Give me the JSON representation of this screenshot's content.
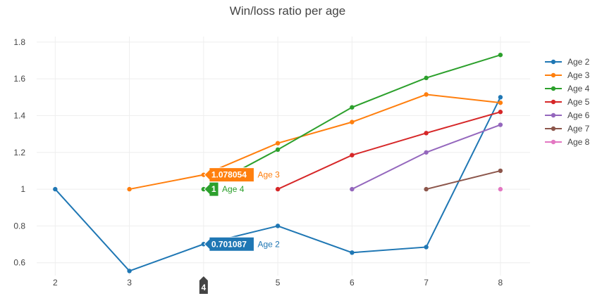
{
  "chart_data": {
    "type": "line",
    "title": "Win/loss ratio per age",
    "x_ticks": [
      "2",
      "3",
      "4",
      "5",
      "6",
      "7",
      "8"
    ],
    "y_ticks": [
      "0.6",
      "0.8",
      "1",
      "1.2",
      "1.4",
      "1.6",
      "1.8"
    ],
    "xlim": [
      1.75,
      8.4
    ],
    "ylim": [
      0.53,
      1.83
    ],
    "grid": true,
    "legend_position": "right",
    "series": [
      {
        "name": "Age 2",
        "color": "#1f77b4",
        "points": [
          [
            2,
            1.0
          ],
          [
            3,
            0.555
          ],
          [
            4,
            0.701087
          ],
          [
            5,
            0.8
          ],
          [
            6,
            0.655
          ],
          [
            7,
            0.685
          ],
          [
            8,
            1.5
          ]
        ]
      },
      {
        "name": "Age 3",
        "color": "#ff7f0e",
        "points": [
          [
            3,
            1.0
          ],
          [
            4,
            1.078054
          ],
          [
            5,
            1.25
          ],
          [
            6,
            1.365
          ],
          [
            7,
            1.515
          ],
          [
            8,
            1.47
          ]
        ]
      },
      {
        "name": "Age 4",
        "color": "#2ca02c",
        "points": [
          [
            4,
            1.0
          ],
          [
            5,
            1.215
          ],
          [
            6,
            1.445
          ],
          [
            7,
            1.605
          ],
          [
            8,
            1.73
          ]
        ]
      },
      {
        "name": "Age 5",
        "color": "#d62728",
        "points": [
          [
            5,
            1.0
          ],
          [
            6,
            1.185
          ],
          [
            7,
            1.305
          ],
          [
            8,
            1.42
          ]
        ]
      },
      {
        "name": "Age 6",
        "color": "#9467bd",
        "points": [
          [
            6,
            1.0
          ],
          [
            7,
            1.2
          ],
          [
            8,
            1.35
          ]
        ]
      },
      {
        "name": "Age 7",
        "color": "#8c564b",
        "points": [
          [
            7,
            1.0
          ],
          [
            8,
            1.1
          ]
        ]
      },
      {
        "name": "Age 8",
        "color": "#e377c2",
        "points": [
          [
            8,
            1.0
          ]
        ]
      }
    ],
    "hover": {
      "x_label": "4",
      "labels": [
        {
          "series": "Age 3",
          "value_text": "1.078054",
          "x": 4,
          "y": 1.078054
        },
        {
          "series": "Age 4",
          "value_text": "1",
          "x": 4,
          "y": 1.0
        },
        {
          "series": "Age 2",
          "value_text": "0.701087",
          "x": 4,
          "y": 0.701087
        }
      ]
    }
  }
}
